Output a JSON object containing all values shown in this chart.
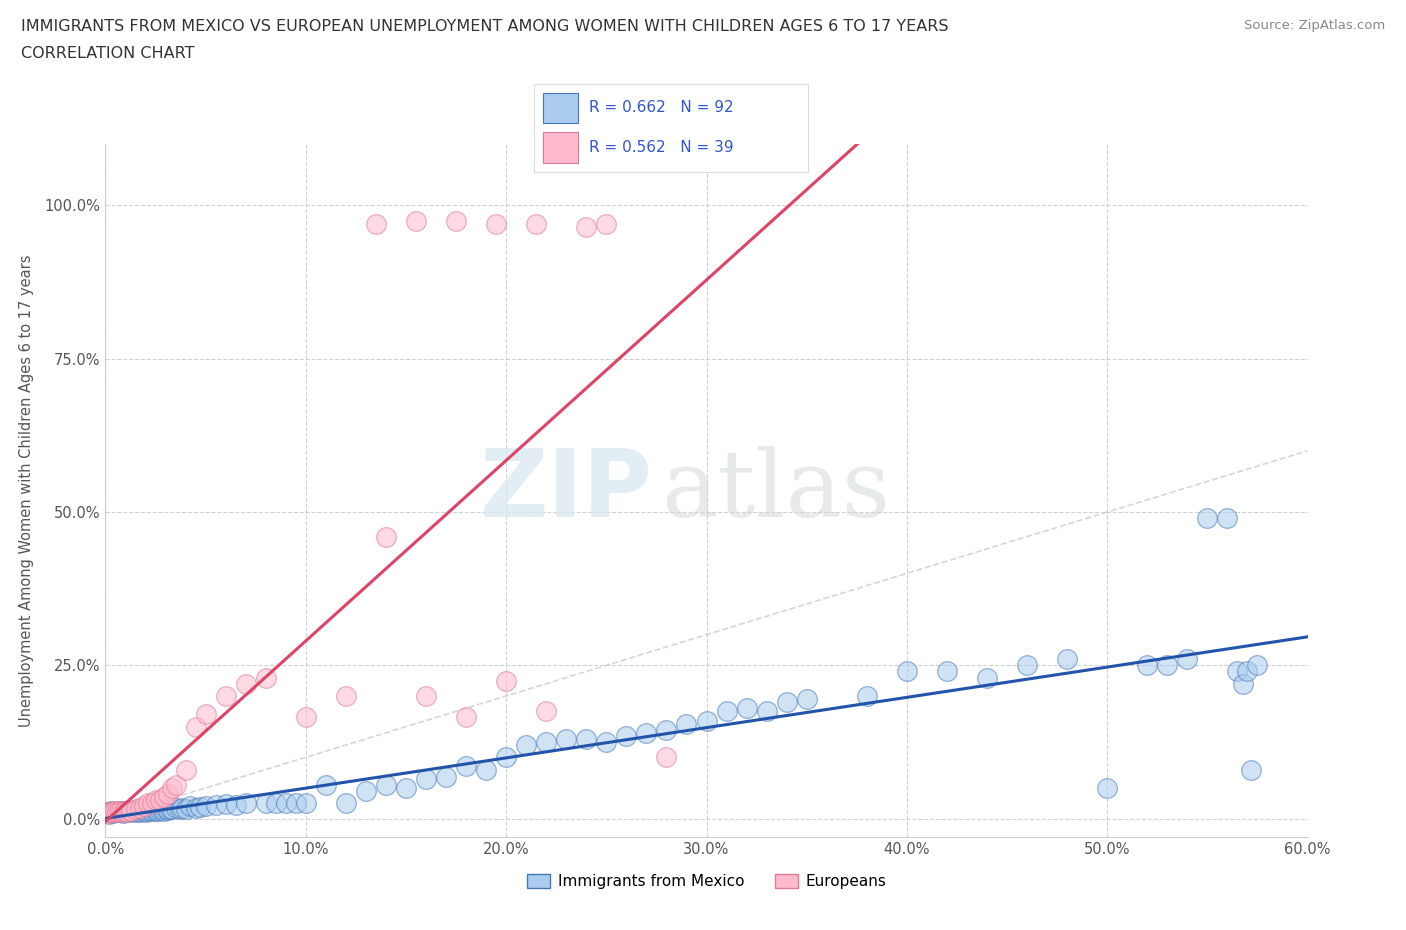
{
  "title_line1": "IMMIGRANTS FROM MEXICO VS EUROPEAN UNEMPLOYMENT AMONG WOMEN WITH CHILDREN AGES 6 TO 17 YEARS",
  "title_line2": "CORRELATION CHART",
  "source_text": "Source: ZipAtlas.com",
  "ylabel": "Unemployment Among Women with Children Ages 6 to 17 years",
  "xlim": [
    0.0,
    0.6
  ],
  "ylim": [
    -0.03,
    1.1
  ],
  "yticks": [
    0.0,
    0.25,
    0.5,
    0.75,
    1.0
  ],
  "ytick_labels": [
    "0.0%",
    "25.0%",
    "50.0%",
    "75.0%",
    "100.0%"
  ],
  "xticks": [
    0.0,
    0.1,
    0.2,
    0.3,
    0.4,
    0.5,
    0.6
  ],
  "xtick_labels": [
    "0.0%",
    "10.0%",
    "20.0%",
    "30.0%",
    "40.0%",
    "50.0%",
    "60.0%"
  ],
  "grid_color": "#cccccc",
  "background_color": "#ffffff",
  "watermark_ZIP": "ZIP",
  "watermark_atlas": "atlas",
  "color_mexico_face": "#aaccee",
  "color_mexico_edge": "#4477bb",
  "color_europe_face": "#ffbbcc",
  "color_europe_edge": "#dd7799",
  "color_mexico_line": "#2255aa",
  "color_europe_line": "#dd4466",
  "color_diagonal": "#cccccc",
  "legend_label1": "Immigrants from Mexico",
  "legend_label2": "Europeans",
  "R_mexico": "0.662",
  "N_mexico": "92",
  "R_europe": "0.562",
  "N_europe": "39",
  "legend_text_color": "#3355cc",
  "title_color": "#333333",
  "source_color": "#888888",
  "axis_label_color": "#555555",
  "tick_color": "#555555",
  "mexico_x": [
    0.001,
    0.002,
    0.003,
    0.004,
    0.005,
    0.006,
    0.007,
    0.008,
    0.009,
    0.01,
    0.011,
    0.012,
    0.013,
    0.014,
    0.015,
    0.016,
    0.017,
    0.018,
    0.019,
    0.02,
    0.021,
    0.022,
    0.023,
    0.024,
    0.025,
    0.026,
    0.027,
    0.028,
    0.029,
    0.03,
    0.031,
    0.032,
    0.033,
    0.035,
    0.037,
    0.038,
    0.04,
    0.042,
    0.045,
    0.047,
    0.05,
    0.055,
    0.06,
    0.065,
    0.07,
    0.08,
    0.085,
    0.09,
    0.095,
    0.1,
    0.11,
    0.12,
    0.13,
    0.14,
    0.15,
    0.16,
    0.17,
    0.18,
    0.19,
    0.2,
    0.21,
    0.22,
    0.23,
    0.24,
    0.25,
    0.26,
    0.27,
    0.28,
    0.29,
    0.3,
    0.31,
    0.32,
    0.33,
    0.34,
    0.35,
    0.38,
    0.4,
    0.42,
    0.44,
    0.46,
    0.48,
    0.5,
    0.52,
    0.53,
    0.54,
    0.55,
    0.56,
    0.565,
    0.568,
    0.57,
    0.572,
    0.575
  ],
  "mexico_y": [
    0.01,
    0.008,
    0.012,
    0.009,
    0.011,
    0.01,
    0.013,
    0.011,
    0.009,
    0.012,
    0.01,
    0.013,
    0.011,
    0.012,
    0.01,
    0.013,
    0.011,
    0.014,
    0.012,
    0.011,
    0.013,
    0.014,
    0.012,
    0.015,
    0.013,
    0.012,
    0.014,
    0.016,
    0.013,
    0.015,
    0.014,
    0.016,
    0.015,
    0.017,
    0.016,
    0.018,
    0.016,
    0.02,
    0.018,
    0.019,
    0.02,
    0.022,
    0.024,
    0.022,
    0.025,
    0.025,
    0.025,
    0.025,
    0.025,
    0.025,
    0.055,
    0.025,
    0.045,
    0.055,
    0.05,
    0.065,
    0.068,
    0.085,
    0.08,
    0.1,
    0.12,
    0.125,
    0.13,
    0.13,
    0.125,
    0.135,
    0.14,
    0.145,
    0.155,
    0.16,
    0.175,
    0.18,
    0.175,
    0.19,
    0.195,
    0.2,
    0.24,
    0.24,
    0.23,
    0.25,
    0.26,
    0.05,
    0.25,
    0.25,
    0.26,
    0.49,
    0.49,
    0.24,
    0.22,
    0.24,
    0.08,
    0.25
  ],
  "europe_x": [
    0.001,
    0.002,
    0.003,
    0.004,
    0.005,
    0.006,
    0.007,
    0.008,
    0.009,
    0.01,
    0.011,
    0.012,
    0.013,
    0.015,
    0.017,
    0.019,
    0.021,
    0.023,
    0.025,
    0.027,
    0.029,
    0.031,
    0.033,
    0.035,
    0.04,
    0.045,
    0.05,
    0.06,
    0.07,
    0.08,
    0.1,
    0.12,
    0.14,
    0.16,
    0.18,
    0.2,
    0.22,
    0.25,
    0.28
  ],
  "europe_y": [
    0.01,
    0.009,
    0.011,
    0.01,
    0.012,
    0.011,
    0.013,
    0.012,
    0.01,
    0.013,
    0.011,
    0.014,
    0.013,
    0.015,
    0.018,
    0.02,
    0.025,
    0.025,
    0.03,
    0.03,
    0.035,
    0.04,
    0.05,
    0.055,
    0.08,
    0.15,
    0.17,
    0.2,
    0.22,
    0.23,
    0.165,
    0.2,
    0.46,
    0.2,
    0.165,
    0.225,
    0.175,
    0.97,
    0.1
  ],
  "europe_outliers_x": [
    0.135,
    0.155,
    0.175,
    0.195,
    0.215,
    0.24
  ],
  "europe_outliers_y": [
    0.97,
    0.975,
    0.975,
    0.97,
    0.97,
    0.965
  ]
}
